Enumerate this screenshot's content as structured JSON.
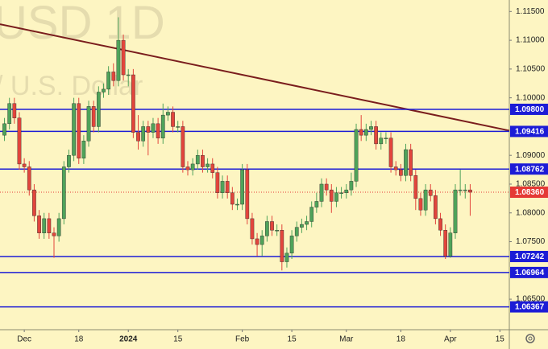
{
  "chart_data": {
    "type": "candlestick",
    "watermark": "USD  1D",
    "watermark_subtitle": "/ U.S. Dollar",
    "x": [
      0,
      1,
      2,
      3,
      4,
      5,
      6,
      7,
      8,
      9,
      10,
      11,
      12,
      13,
      14,
      15,
      16,
      17,
      18,
      19,
      20,
      21,
      22,
      23,
      24,
      25,
      26,
      27,
      28,
      29,
      30,
      31,
      32,
      33,
      34,
      35,
      36,
      37,
      38,
      39,
      40,
      41,
      42,
      43,
      44,
      45,
      46,
      47,
      48,
      49,
      50,
      51,
      52,
      53,
      54,
      55,
      56,
      57,
      58,
      59,
      60,
      61,
      62,
      63,
      64,
      65,
      66,
      67,
      68,
      69,
      70,
      71,
      72,
      73,
      74,
      75,
      76,
      77,
      78,
      79,
      80,
      81,
      82,
      83,
      84,
      85,
      86,
      87,
      88,
      89,
      90,
      91,
      92,
      93,
      94
    ],
    "open": [
      1.0935,
      1.0955,
      1.099,
      1.0965,
      1.0885,
      1.088,
      1.084,
      1.0795,
      1.0765,
      1.079,
      1.0765,
      1.076,
      1.079,
      1.088,
      1.09,
      1.099,
      1.0895,
      1.0925,
      1.0985,
      1.095,
      1.101,
      1.1015,
      1.1045,
      1.103,
      1.11,
      1.104,
      1.104,
      1.094,
      1.0925,
      1.095,
      1.094,
      1.0955,
      1.093,
      1.097,
      1.0975,
      1.095,
      1.095,
      1.088,
      1.0875,
      1.0885,
      1.09,
      1.088,
      1.0885,
      1.087,
      1.0835,
      1.0855,
      1.0835,
      1.0815,
      1.0815,
      1.0875,
      1.079,
      1.0755,
      1.0745,
      1.076,
      1.0785,
      1.077,
      1.077,
      1.0715,
      1.073,
      1.076,
      1.0775,
      1.078,
      1.0785,
      1.081,
      1.082,
      1.085,
      1.084,
      1.082,
      1.0835,
      1.0835,
      1.084,
      1.0855,
      1.0945,
      1.0935,
      1.0945,
      1.095,
      1.092,
      1.093,
      1.093,
      1.088,
      1.0875,
      1.0865,
      1.091,
      1.0865,
      1.0825,
      1.0805,
      1.084,
      1.083,
      1.079,
      1.077,
      1.0725,
      1.0765,
      1.084,
      1.084,
      1.084
    ],
    "high": [
      1.0965,
      1.1,
      1.1,
      1.0975,
      1.0895,
      1.089,
      1.085,
      1.0805,
      1.08,
      1.08,
      1.0775,
      1.08,
      1.089,
      1.091,
      1.1,
      1.1,
      1.0935,
      1.0995,
      1.0995,
      1.102,
      1.1025,
      1.1055,
      1.106,
      1.114,
      1.111,
      1.105,
      1.105,
      1.097,
      1.096,
      1.096,
      1.0965,
      1.0965,
      1.099,
      1.0985,
      1.0985,
      1.096,
      1.096,
      1.089,
      1.0895,
      1.091,
      1.091,
      1.0895,
      1.0895,
      1.088,
      1.0865,
      1.0865,
      1.0845,
      1.0825,
      1.0885,
      1.0885,
      1.08,
      1.0765,
      1.077,
      1.0795,
      1.0795,
      1.078,
      1.078,
      1.074,
      1.077,
      1.0785,
      1.079,
      1.0795,
      1.082,
      1.0835,
      1.086,
      1.086,
      1.085,
      1.0845,
      1.0845,
      1.085,
      1.087,
      1.0955,
      1.097,
      1.0955,
      1.096,
      1.096,
      1.094,
      1.094,
      1.094,
      1.089,
      1.0885,
      1.092,
      1.092,
      1.0875,
      1.0835,
      1.085,
      1.085,
      1.084,
      1.08,
      1.078,
      1.0775,
      1.085,
      1.0875,
      1.085,
      1.085
    ],
    "low": [
      1.0925,
      1.0945,
      1.0955,
      1.0875,
      1.087,
      1.083,
      1.0785,
      1.0755,
      1.0755,
      1.0755,
      1.0722,
      1.075,
      1.078,
      1.087,
      1.089,
      1.0885,
      1.0885,
      1.0915,
      1.094,
      1.094,
      1.1,
      1.1005,
      1.102,
      1.102,
      1.103,
      1.102,
      1.093,
      1.091,
      1.0915,
      1.09,
      1.093,
      1.092,
      1.092,
      1.096,
      1.094,
      1.094,
      1.087,
      1.0865,
      1.0865,
      1.0875,
      1.087,
      1.087,
      1.086,
      1.0825,
      1.0825,
      1.0825,
      1.0805,
      1.0805,
      1.0805,
      1.078,
      1.0745,
      1.0725,
      1.0725,
      1.075,
      1.076,
      1.076,
      1.07,
      1.0705,
      1.072,
      1.075,
      1.0765,
      1.077,
      1.0775,
      1.08,
      1.081,
      1.083,
      1.08,
      1.081,
      1.0825,
      1.0825,
      1.083,
      1.0845,
      1.0925,
      1.0925,
      1.0935,
      1.091,
      1.091,
      1.092,
      1.087,
      1.0865,
      1.0855,
      1.0855,
      1.0855,
      1.0805,
      1.0795,
      1.0795,
      1.082,
      1.078,
      1.076,
      1.072,
      1.0722,
      1.0755,
      1.083,
      1.0825,
      1.0795
    ],
    "close": [
      1.0955,
      1.099,
      1.0965,
      1.0885,
      1.088,
      1.084,
      1.0795,
      1.0765,
      1.079,
      1.0765,
      1.076,
      1.079,
      1.088,
      1.09,
      1.099,
      1.0895,
      1.0925,
      1.0985,
      1.095,
      1.101,
      1.1015,
      1.1045,
      1.103,
      1.11,
      1.104,
      1.104,
      1.094,
      1.0925,
      1.095,
      1.094,
      1.0955,
      1.093,
      1.097,
      1.0975,
      1.095,
      1.095,
      1.088,
      1.0875,
      1.0885,
      1.09,
      1.088,
      1.0885,
      1.087,
      1.0835,
      1.0855,
      1.0835,
      1.0815,
      1.0815,
      1.0875,
      1.079,
      1.0755,
      1.0745,
      1.076,
      1.0785,
      1.077,
      1.077,
      1.0715,
      1.073,
      1.076,
      1.0775,
      1.078,
      1.0785,
      1.081,
      1.082,
      1.085,
      1.084,
      1.082,
      1.0835,
      1.0835,
      1.084,
      1.0855,
      1.0945,
      1.0935,
      1.0945,
      1.095,
      1.092,
      1.093,
      1.093,
      1.088,
      1.0875,
      1.0865,
      1.091,
      1.0865,
      1.0825,
      1.0805,
      1.084,
      1.083,
      1.079,
      1.077,
      1.0725,
      1.0765,
      1.084,
      1.084,
      1.084,
      1.0836
    ],
    "up_color": "#4fa35a",
    "down_color": "#e2453c",
    "xlim": [
      -0.9,
      101.9
    ],
    "ylim": [
      1.0597,
      1.117
    ],
    "xticks": [
      {
        "value": 4,
        "label": "Dec"
      },
      {
        "value": 15,
        "label": "18"
      },
      {
        "value": 25,
        "label": "2024"
      },
      {
        "value": 35,
        "label": "15"
      },
      {
        "value": 48,
        "label": "Feb"
      },
      {
        "value": 58,
        "label": "15"
      },
      {
        "value": 69,
        "label": "Mar"
      },
      {
        "value": 80,
        "label": "18"
      },
      {
        "value": 90,
        "label": "Apr"
      },
      {
        "value": 100,
        "label": "15"
      }
    ],
    "yticks": [
      {
        "value": 1.115,
        "label": "1.11500"
      },
      {
        "value": 1.11,
        "label": "1.11000"
      },
      {
        "value": 1.105,
        "label": "1.10500"
      },
      {
        "value": 1.1,
        "label": "1.10000"
      },
      {
        "value": 1.09,
        "label": "1.09000"
      },
      {
        "value": 1.085,
        "label": "1.08500"
      },
      {
        "value": 1.08,
        "label": "1.08000"
      },
      {
        "value": 1.075,
        "label": "1.07500"
      },
      {
        "value": 1.065,
        "label": "1.06500"
      }
    ],
    "levels": [
      {
        "value": 1.098,
        "label": "1.09800",
        "color": "#1c1cd6",
        "dashed": false
      },
      {
        "value": 1.09416,
        "label": "1.09416",
        "color": "#1c1cd6",
        "dashed": false
      },
      {
        "value": 1.08762,
        "label": "1.08762",
        "color": "#1c1cd6",
        "dashed": false
      },
      {
        "value": 1.0836,
        "label": "1.08360",
        "color": "#e53935",
        "dashed": true
      },
      {
        "value": 1.07242,
        "label": "1.07242",
        "color": "#1c1cd6",
        "dashed": false
      },
      {
        "value": 1.06964,
        "label": "1.06964",
        "color": "#1c1cd6",
        "dashed": false
      },
      {
        "value": 1.06367,
        "label": "1.06367",
        "color": "#1c1cd6",
        "dashed": false
      }
    ],
    "trendline": {
      "x": [
        -0.9,
        101.9
      ],
      "y": [
        1.1128,
        1.0943
      ],
      "color": "#7a1d1d"
    }
  }
}
